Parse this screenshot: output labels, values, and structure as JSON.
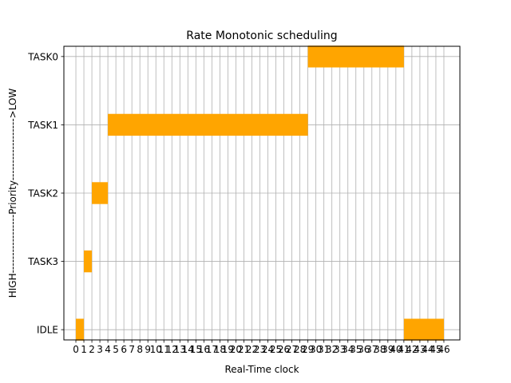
{
  "chart_data": {
    "type": "bar",
    "orientation": "horizontal",
    "title": "Rate Monotonic scheduling",
    "xlabel": "Real-Time clock",
    "ylabel": "HIGH-----------------Priority------------------>LOW",
    "x_ticks": [
      0,
      1,
      2,
      3,
      4,
      5,
      6,
      7,
      8,
      9,
      10,
      11,
      12,
      13,
      14,
      15,
      16,
      17,
      18,
      19,
      20,
      21,
      22,
      23,
      24,
      25,
      26,
      27,
      28,
      29,
      30,
      31,
      32,
      33,
      34,
      35,
      36,
      37,
      38,
      39,
      40,
      41,
      42,
      43,
      44,
      45,
      46
    ],
    "xlim": [
      -1.5,
      48
    ],
    "categories": [
      "IDLE",
      "TASK3",
      "TASK2",
      "TASK1",
      "TASK0"
    ],
    "ylim": [
      -0.15,
      4.15
    ],
    "grid": true,
    "bar_color": "#ffa500",
    "segments": [
      {
        "task": "IDLE",
        "start": 0,
        "end": 1
      },
      {
        "task": "TASK3",
        "start": 1,
        "end": 2
      },
      {
        "task": "TASK2",
        "start": 2,
        "end": 4
      },
      {
        "task": "TASK1",
        "start": 4,
        "end": 29
      },
      {
        "task": "TASK0",
        "start": 29,
        "end": 41
      },
      {
        "task": "IDLE",
        "start": 41,
        "end": 46
      }
    ]
  }
}
